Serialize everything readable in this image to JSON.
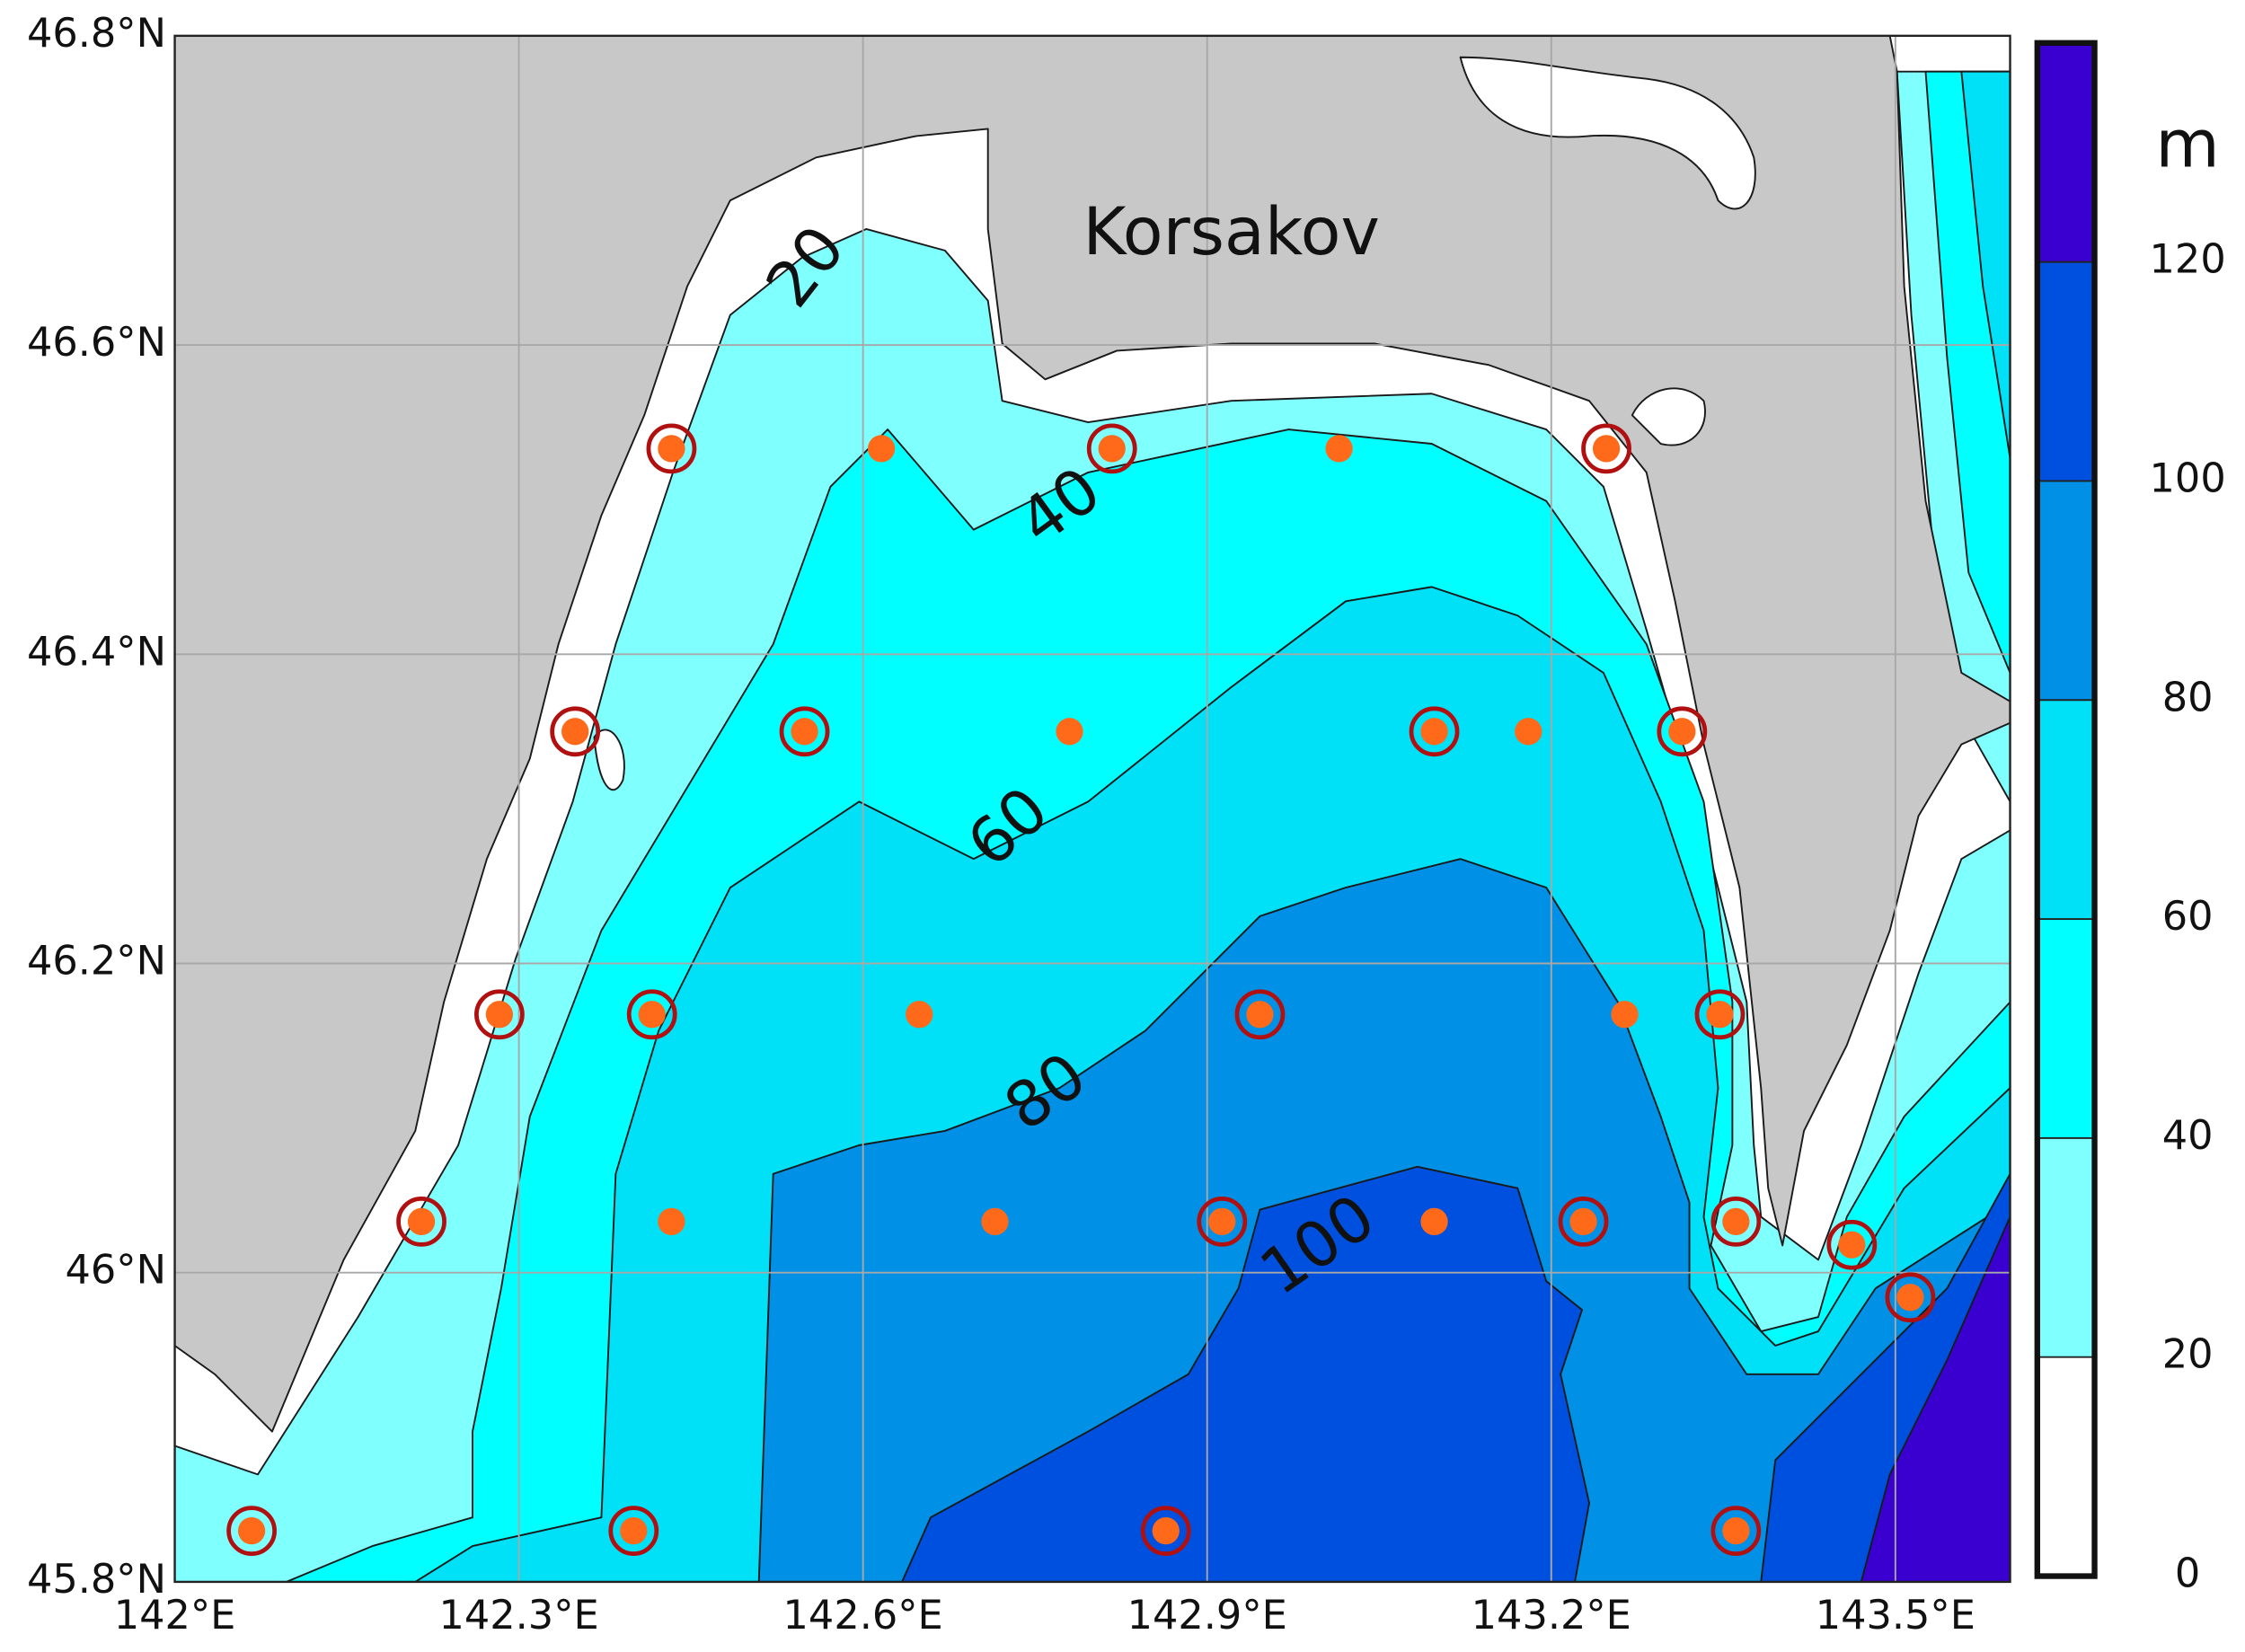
{
  "map": {
    "place_label": "Korsakov",
    "xlim": [
      142,
      143.6
    ],
    "ylim": [
      45.8,
      46.8
    ],
    "xticks": [
      {
        "value": 142,
        "label": "142°E"
      },
      {
        "value": 142.3,
        "label": "142.3°E"
      },
      {
        "value": 142.6,
        "label": "142.6°E"
      },
      {
        "value": 142.9,
        "label": "142.9°E"
      },
      {
        "value": 143.2,
        "label": "143.2°E"
      },
      {
        "value": 143.5,
        "label": "143.5°E"
      }
    ],
    "yticks": [
      {
        "value": 45.8,
        "label": "45.8°N"
      },
      {
        "value": 46,
        "label": "46°N"
      },
      {
        "value": 46.2,
        "label": "46.2°N"
      },
      {
        "value": 46.4,
        "label": "46.4°N"
      },
      {
        "value": 46.6,
        "label": "46.6°N"
      },
      {
        "value": 46.8,
        "label": "46.8°N"
      }
    ],
    "grid": true,
    "contour_labels": [
      20,
      40,
      60,
      80,
      100
    ],
    "stations": {
      "lon": [
        142.433,
        142.616,
        142.817,
        143.015,
        143.248,
        142.349,
        142.549,
        142.78,
        143.098,
        143.18,
        143.314,
        142.283,
        142.416,
        142.649,
        142.946,
        143.264,
        143.347,
        142.215,
        142.433,
        142.715,
        142.913,
        143.098,
        143.228,
        143.361,
        143.462,
        143.513,
        142.067,
        142.4,
        142.864,
        143.361
      ],
      "lat": [
        46.533,
        46.533,
        46.533,
        46.533,
        46.533,
        46.35,
        46.35,
        46.35,
        46.35,
        46.35,
        46.35,
        46.167,
        46.167,
        46.167,
        46.167,
        46.167,
        46.167,
        46.033,
        46.033,
        46.033,
        46.033,
        46.033,
        46.033,
        46.033,
        46.018,
        45.984,
        45.833,
        45.833,
        45.833,
        45.833
      ],
      "circled": [
        true,
        false,
        true,
        false,
        true,
        true,
        true,
        false,
        true,
        false,
        true,
        true,
        true,
        false,
        true,
        false,
        true,
        true,
        false,
        false,
        true,
        false,
        true,
        true,
        true,
        true,
        true,
        true,
        true,
        true
      ],
      "color": "#ff6a1a",
      "ring_color": "#b01010"
    },
    "colorbar": {
      "unit": "m",
      "lim": [
        0,
        140
      ],
      "ticks": [
        0,
        20,
        40,
        60,
        80,
        100,
        120
      ],
      "colors": [
        "#ffffff",
        "#80ffff",
        "#00ffff",
        "#00e0f6",
        "#0090e6",
        "#0050e0",
        "#3a00d0"
      ]
    },
    "land_color": "#c8c8c8"
  }
}
